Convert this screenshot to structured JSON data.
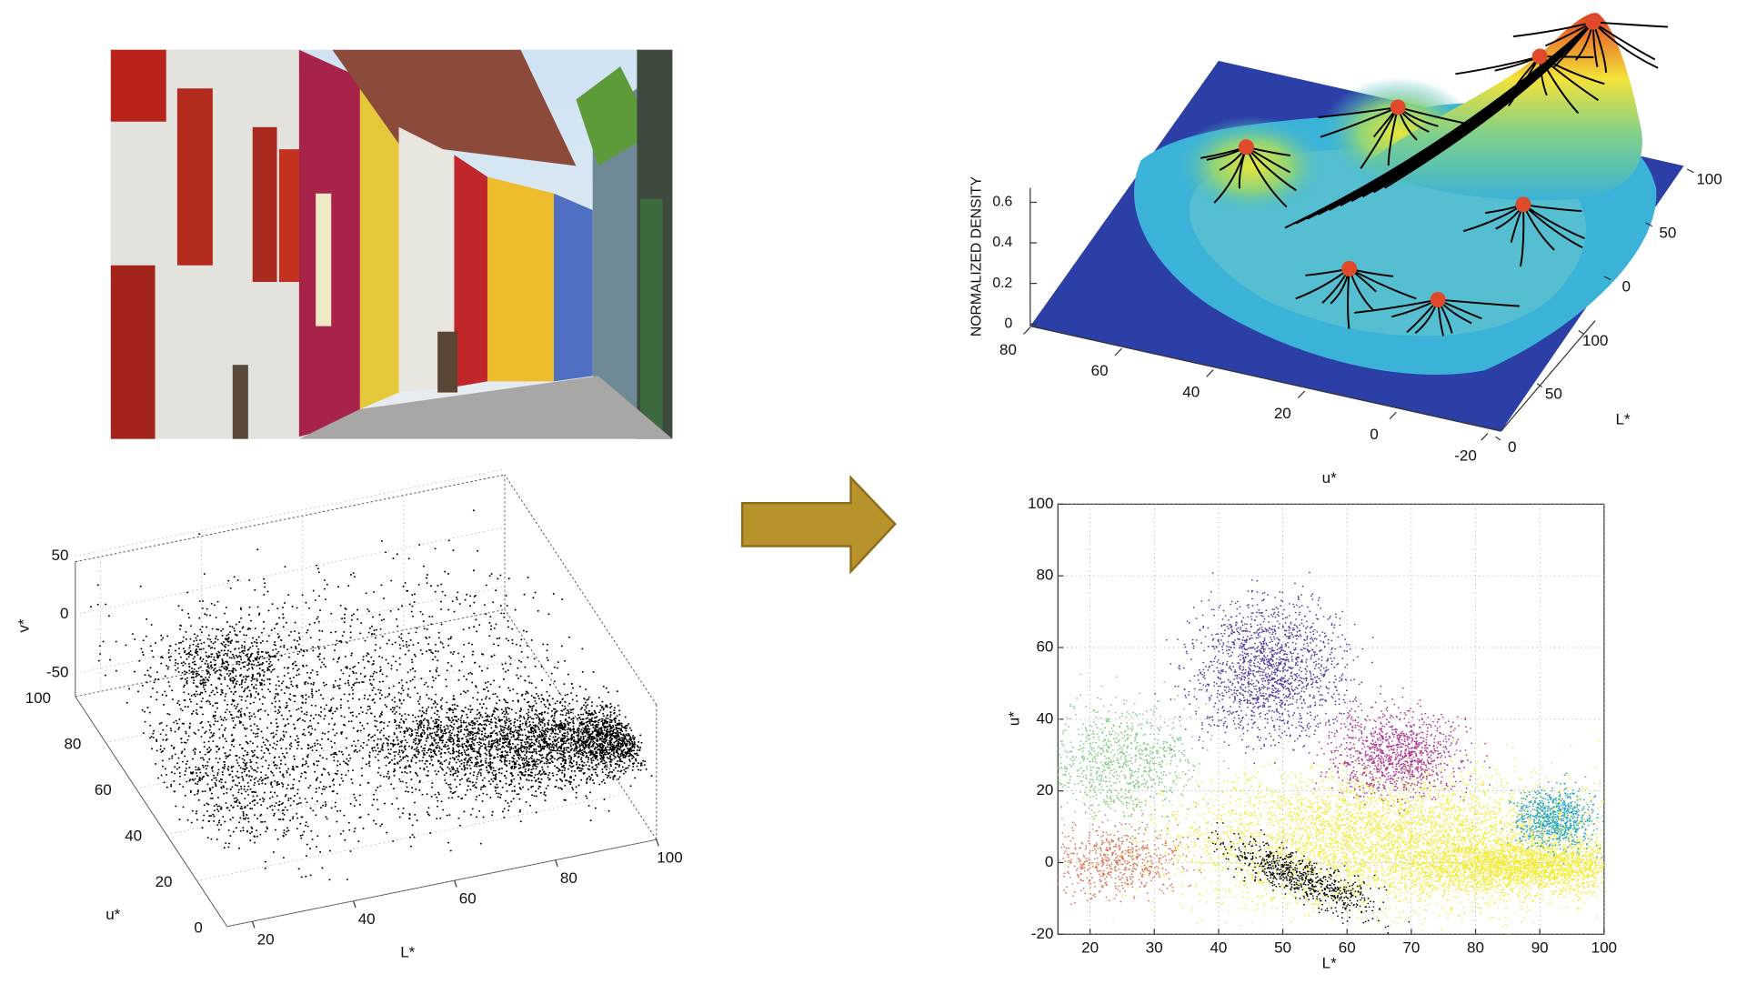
{
  "chart_data": [
    {
      "type": "scatter3d",
      "xlabel": "L*",
      "ylabel": "u*",
      "zlabel": "v*",
      "xticks": [
        20,
        40,
        60,
        80,
        100
      ],
      "yticks": [
        0,
        20,
        40,
        60,
        80,
        100
      ],
      "zticks": [
        -50,
        0,
        50
      ]
    },
    {
      "type": "surface",
      "zlabel": "NORMALIZED DENSITY",
      "xlabel": "u*",
      "ylabel": "L*",
      "xticks": [
        80,
        60,
        40,
        20,
        0,
        -20
      ],
      "yticks": [
        0,
        50,
        100
      ],
      "vticks": [
        0,
        50,
        100
      ],
      "zticks": [
        0,
        0.2,
        0.4,
        0.6
      ]
    },
    {
      "type": "scatter",
      "xlabel": "L*",
      "ylabel": "u*",
      "xlim": [
        15,
        100
      ],
      "ylim": [
        -20,
        100
      ],
      "xticks": [
        20,
        30,
        40,
        50,
        60,
        70,
        80,
        90,
        100
      ],
      "yticks": [
        -20,
        0,
        20,
        40,
        60,
        80,
        100
      ],
      "grid": true
    }
  ]
}
